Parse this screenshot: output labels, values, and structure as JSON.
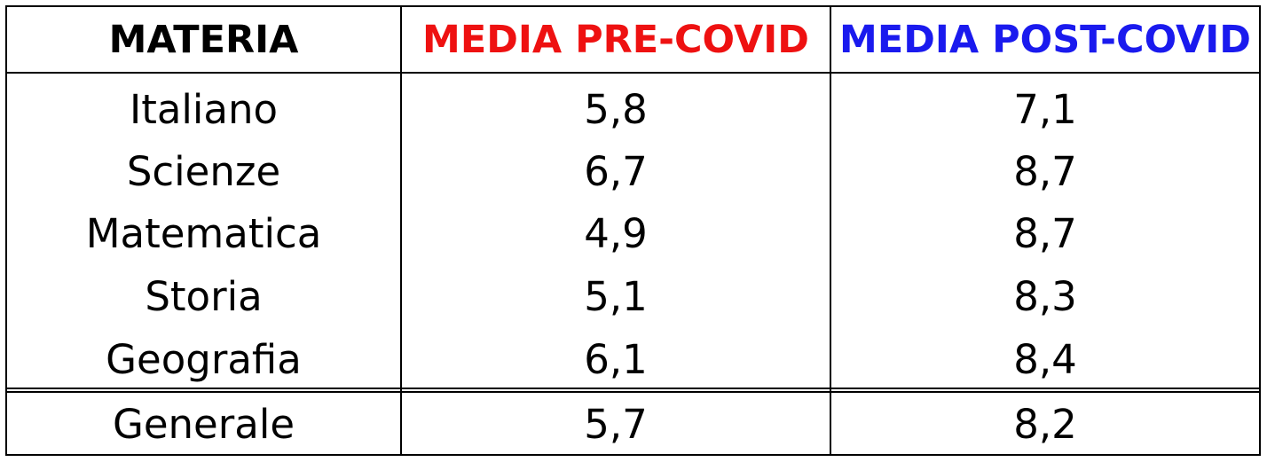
{
  "colors": {
    "pre_covid": "#ee1111",
    "post_covid": "#1a1aee",
    "text": "#000000",
    "border": "#000000"
  },
  "table": {
    "headers": [
      "MATERIA",
      "MEDIA PRE-COVID",
      "MEDIA POST-COVID"
    ],
    "rows": [
      [
        "Italiano",
        "5,8",
        "7,1"
      ],
      [
        "Scienze",
        "6,7",
        "8,7"
      ],
      [
        "Matematica",
        "4,9",
        "8,7"
      ],
      [
        "Storia",
        "5,1",
        "8,3"
      ],
      [
        "Geografia",
        "6,1",
        "8,4"
      ]
    ],
    "total": [
      "Generale",
      "5,7",
      "8,2"
    ]
  }
}
